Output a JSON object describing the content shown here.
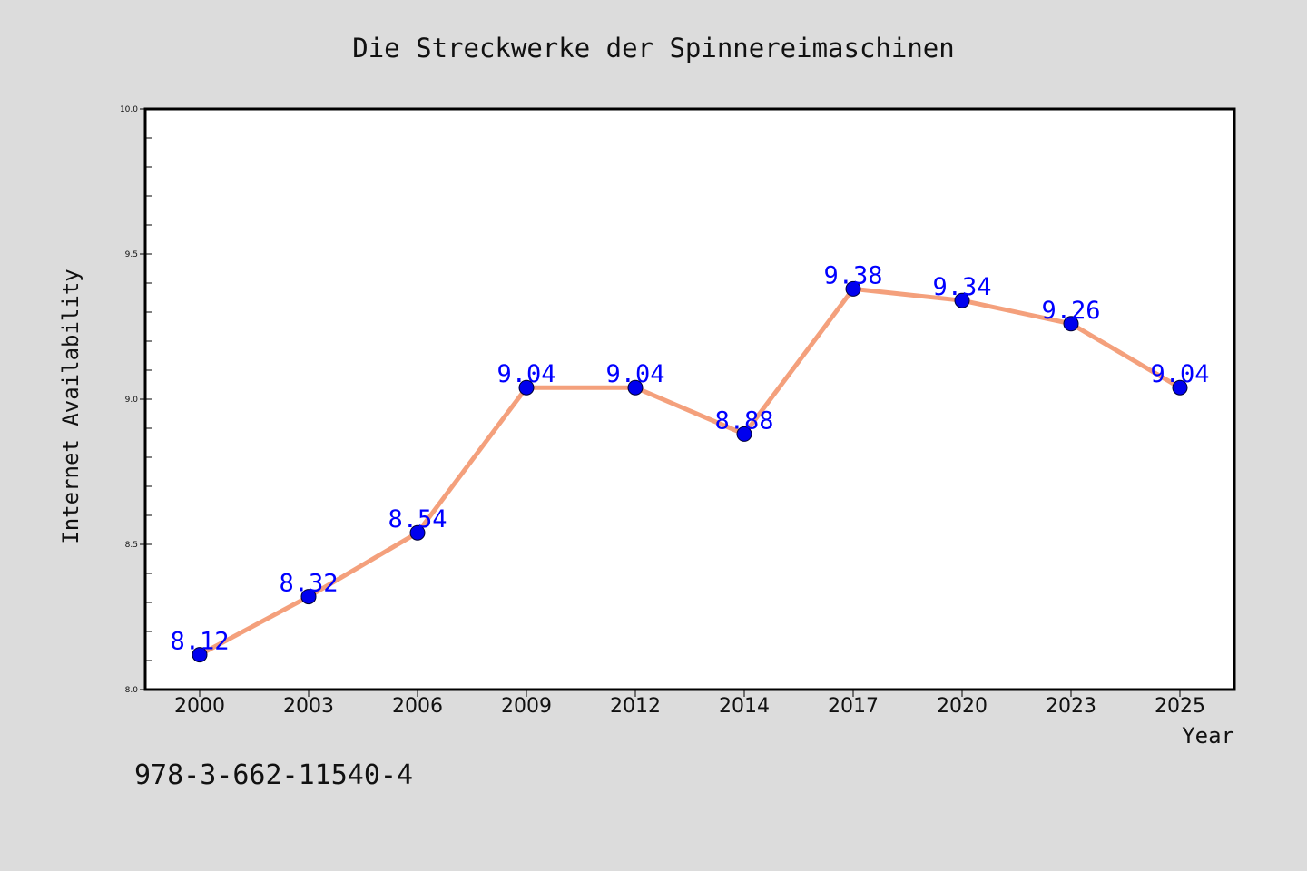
{
  "chart_data": {
    "type": "line",
    "title": "Die Streckwerke der Spinnereimaschinen",
    "xlabel": "Year",
    "ylabel": "Internet Availability",
    "categories": [
      "2000",
      "2003",
      "2006",
      "2009",
      "2012",
      "2014",
      "2017",
      "2020",
      "2023",
      "2025"
    ],
    "series": [
      {
        "values": [
          8.12,
          8.32,
          8.54,
          9.04,
          9.04,
          8.88,
          9.38,
          9.34,
          9.26,
          9.04
        ],
        "value_labels": [
          "8.12",
          "8.32",
          "8.54",
          "9.04",
          "9.04",
          "8.88",
          "9.38",
          "9.34",
          "9.26",
          "9.04"
        ]
      }
    ],
    "ylim": [
      8.0,
      10.0
    ],
    "yticks": [
      8.0,
      8.5,
      9.0,
      9.5,
      10.0
    ],
    "ytick_labels": [
      "8.0",
      "8.5",
      "9.0",
      "9.5",
      "10.0"
    ],
    "y_minor_step": 0.1,
    "grid": false,
    "legend": "none",
    "colors": {
      "line": "#f4a07c",
      "marker": "#0000ee",
      "value_label": "#0000ff",
      "background": "#dcdcdc",
      "plot_background": "#ffffff",
      "axis": "#000000"
    }
  },
  "footer": {
    "isbn": "978-3-662-11540-4"
  }
}
